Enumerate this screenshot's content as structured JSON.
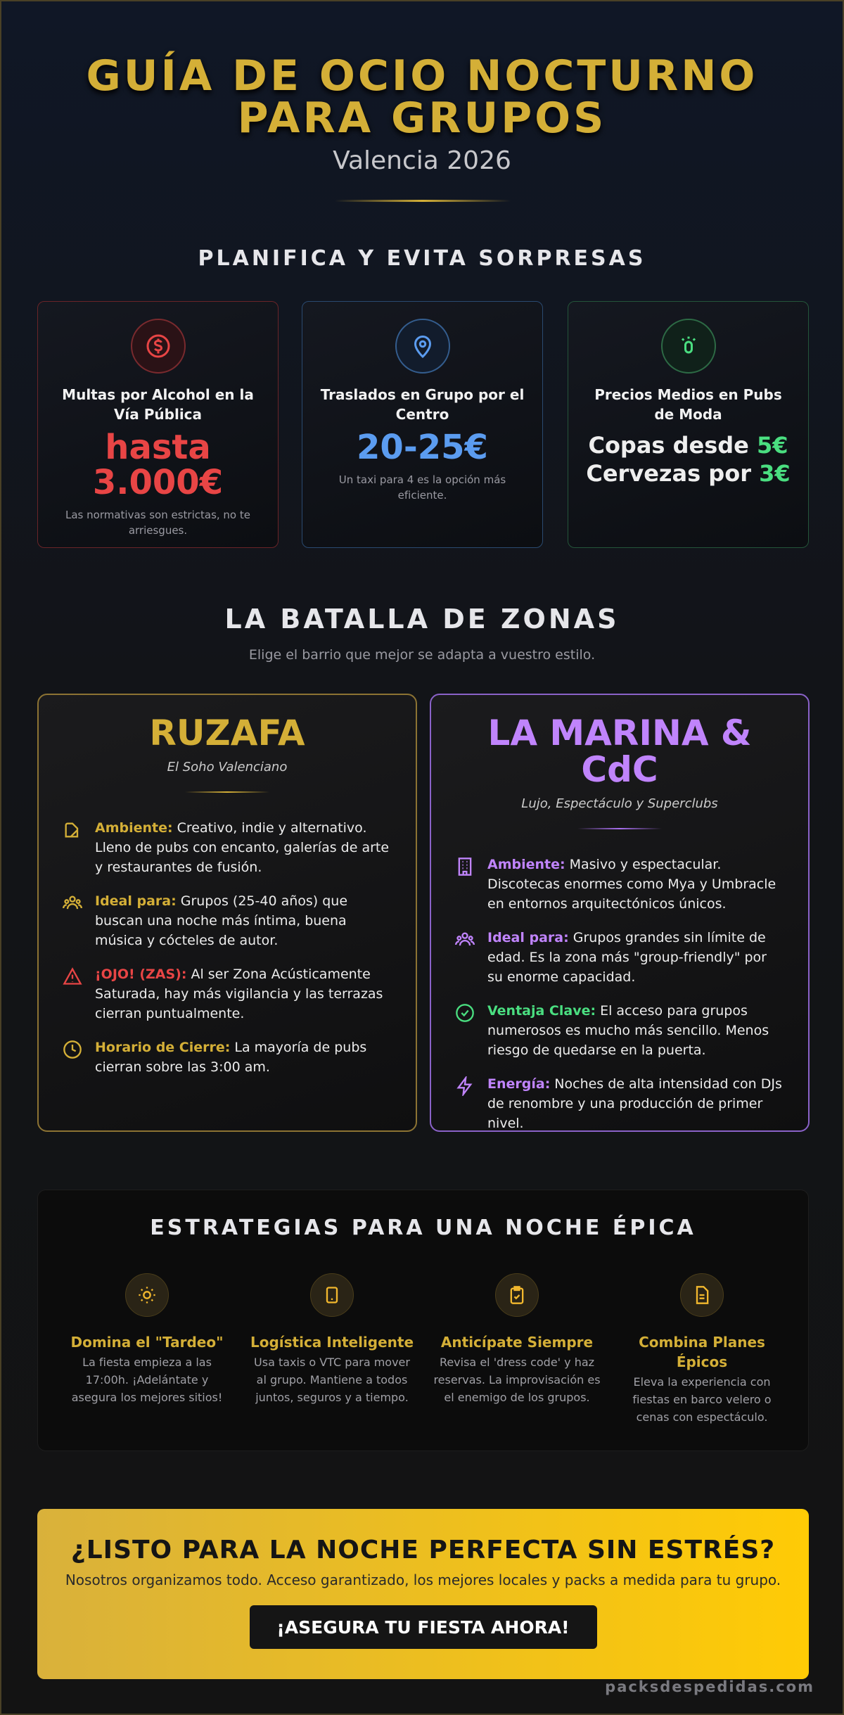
{
  "header": {
    "title_line1": "GUÍA DE OCIO NOCTURNO",
    "title_line2": "PARA GRUPOS",
    "subtitle": "Valencia 2026"
  },
  "planning": {
    "heading": "PLANIFICA Y EVITA SORPRESAS",
    "cards": [
      {
        "title": "Multas por Alcohol en la Vía Pública",
        "value": "hasta 3.000€",
        "note": "Las normativas son estrictas, no te arriesgues."
      },
      {
        "title": "Traslados en Grupo por el Centro",
        "value": "20-25€",
        "note": "Un taxi para 4 es la opción más eficiente."
      },
      {
        "title": "Precios Medios en Pubs de Moda",
        "lines": [
          {
            "text": "Copas desde",
            "price": "5€"
          },
          {
            "text": "Cervezas por",
            "price": "3€"
          }
        ]
      }
    ]
  },
  "zones": {
    "heading": "LA BATALLA DE ZONAS",
    "subtitle": "Elige el barrio que mejor se adapta a vuestro estilo.",
    "cards": [
      {
        "name": "RUZAFA",
        "tagline": "El Soho Valenciano",
        "items": [
          {
            "label": "Ambiente:",
            "text": "Creativo, indie y alternativo. Lleno de pubs con encanto, galerías de arte y restaurantes de fusión."
          },
          {
            "label": "Ideal para:",
            "text": "Grupos (25-40 años) que buscan una noche más íntima, buena música y cócteles de autor."
          },
          {
            "label": "¡OJO! (ZAS):",
            "text": "Al ser Zona Acústicamente Saturada, hay más vigilancia y las terrazas cierran puntualmente."
          },
          {
            "label": "Horario de Cierre:",
            "text": "La mayoría de pubs cierran sobre las 3:00 am."
          }
        ]
      },
      {
        "name": "LA MARINA & CdC",
        "tagline": "Lujo, Espectáculo y Superclubs",
        "items": [
          {
            "label": "Ambiente:",
            "text": "Masivo y espectacular. Discotecas enormes como Mya y Umbracle en entornos arquitectónicos únicos."
          },
          {
            "label": "Ideal para:",
            "text": "Grupos grandes sin límite de edad. Es la zona más \"group-friendly\" por su enorme capacidad."
          },
          {
            "label": "Ventaja Clave:",
            "text": "El acceso para grupos numerosos es mucho más sencillo. Menos riesgo de quedarse en la puerta."
          },
          {
            "label": "Energía:",
            "text": "Noches de alta intensidad con DJs de renombre y una producción de primer nivel."
          }
        ]
      }
    ]
  },
  "strategies": {
    "heading": "ESTRATEGIAS PARA UNA NOCHE ÉPICA",
    "items": [
      {
        "title": "Domina el \"Tardeo\"",
        "text": "La fiesta empieza a las 17:00h. ¡Adelántate y asegura los mejores sitios!"
      },
      {
        "title": "Logística Inteligente",
        "text": "Usa taxis o VTC para mover al grupo. Mantiene a todos juntos, seguros y a tiempo."
      },
      {
        "title": "Anticípate Siempre",
        "text": "Revisa el 'dress code' y haz reservas. La improvisación es el enemigo de los grupos."
      },
      {
        "title": "Combina Planes Épicos",
        "text": "Eleva la experiencia con fiestas en barco velero o cenas con espectáculo."
      }
    ]
  },
  "cta": {
    "title": "¿LISTO PARA LA NOCHE PERFECTA SIN ESTRÉS?",
    "text": "Nosotros organizamos todo. Acceso garantizado, los mejores locales y packs a medida para tu grupo.",
    "button": "¡ASEGURA TU FIESTA AHORA!"
  },
  "footer": {
    "brand": "packsdespedidas.com"
  }
}
